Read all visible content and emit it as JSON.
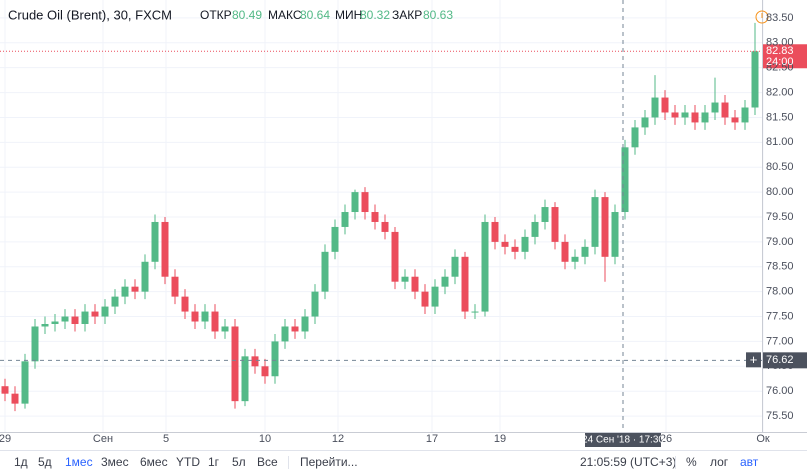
{
  "header": {
    "symbol": "Crude Oil (Brent), 30, FXCM",
    "ohlc": [
      {
        "label": "ОТКР",
        "value": "80.49"
      },
      {
        "label": "МАКС",
        "value": "80.64"
      },
      {
        "label": "МИН",
        "value": "80.32"
      },
      {
        "label": "ЗАКР",
        "value": "80.63"
      }
    ]
  },
  "chart_data": {
    "type": "candlestick",
    "up_color": "#53b987",
    "down_color": "#eb4d5c",
    "grid": true,
    "open": [
      76.1,
      75.95,
      75.75,
      76.6,
      77.3,
      77.35,
      77.4,
      77.5,
      77.35,
      77.6,
      77.5,
      77.7,
      77.9,
      78.1,
      78.0,
      78.6,
      79.4,
      78.3,
      77.9,
      77.6,
      77.4,
      77.6,
      77.2,
      77.3,
      75.8,
      76.7,
      76.5,
      76.3,
      77.0,
      77.3,
      77.2,
      77.5,
      78.0,
      78.8,
      79.3,
      79.6,
      80.0,
      79.6,
      79.4,
      79.2,
      78.2,
      78.3,
      78.0,
      77.7,
      78.1,
      78.3,
      78.7,
      77.6,
      77.6,
      79.4,
      79.0,
      78.9,
      78.8,
      79.1,
      79.4,
      79.7,
      79.0,
      78.6,
      78.7,
      78.9,
      79.9,
      78.7,
      79.6,
      80.9,
      81.3,
      81.5,
      81.9,
      81.6,
      81.5,
      81.6,
      81.4,
      81.6,
      81.8,
      81.5,
      81.4,
      81.7
    ],
    "high": [
      76.25,
      76.1,
      76.75,
      77.45,
      77.5,
      77.55,
      77.65,
      77.65,
      77.75,
      77.75,
      77.85,
      78.05,
      78.25,
      78.25,
      78.75,
      79.55,
      79.5,
      78.45,
      78.05,
      77.75,
      77.75,
      77.75,
      77.45,
      77.45,
      76.85,
      76.85,
      76.65,
      77.15,
      77.45,
      77.45,
      77.65,
      78.15,
      78.95,
      79.45,
      79.75,
      80.05,
      80.1,
      79.75,
      79.55,
      79.3,
      78.45,
      78.45,
      78.15,
      78.25,
      78.45,
      78.85,
      78.8,
      77.75,
      79.55,
      79.5,
      79.15,
      79.05,
      79.25,
      79.55,
      79.85,
      79.8,
      79.15,
      78.85,
      79.05,
      80.05,
      80.0,
      79.75,
      81.05,
      81.45,
      81.65,
      82.35,
      82.05,
      81.75,
      81.75,
      81.75,
      81.75,
      82.3,
      81.95,
      81.65,
      81.85,
      83.4
    ],
    "low": [
      75.8,
      75.6,
      75.65,
      76.45,
      77.15,
      77.2,
      77.25,
      77.2,
      77.2,
      77.35,
      77.35,
      77.55,
      77.75,
      77.85,
      77.85,
      78.45,
      78.15,
      77.75,
      77.45,
      77.25,
      77.25,
      77.05,
      77.05,
      75.65,
      75.7,
      76.35,
      76.15,
      76.15,
      76.85,
      77.05,
      77.05,
      77.35,
      77.85,
      78.65,
      79.15,
      79.45,
      79.45,
      79.25,
      79.05,
      78.05,
      78.05,
      77.85,
      77.55,
      77.55,
      77.95,
      78.15,
      77.45,
      77.45,
      77.5,
      78.85,
      78.75,
      78.65,
      78.65,
      78.95,
      79.25,
      78.85,
      78.45,
      78.45,
      78.55,
      78.75,
      78.2,
      78.55,
      79.45,
      80.75,
      81.15,
      81.35,
      81.45,
      81.35,
      81.35,
      81.25,
      81.25,
      81.45,
      81.35,
      81.25,
      81.25,
      81.55
    ],
    "close": [
      75.95,
      75.75,
      76.6,
      77.3,
      77.35,
      77.4,
      77.5,
      77.35,
      77.6,
      77.5,
      77.7,
      77.9,
      78.1,
      78.0,
      78.6,
      79.4,
      78.3,
      77.9,
      77.6,
      77.4,
      77.6,
      77.2,
      77.3,
      75.8,
      76.7,
      76.5,
      76.3,
      77.0,
      77.3,
      77.2,
      77.5,
      78.0,
      78.8,
      79.3,
      79.6,
      80.0,
      79.6,
      79.4,
      79.2,
      78.2,
      78.3,
      78.0,
      77.7,
      78.1,
      78.3,
      78.7,
      77.6,
      77.6,
      79.4,
      79.0,
      78.9,
      78.8,
      79.1,
      79.4,
      79.7,
      79.0,
      78.6,
      78.7,
      78.9,
      79.9,
      78.7,
      79.6,
      80.9,
      81.3,
      81.5,
      81.9,
      81.6,
      81.5,
      81.6,
      81.4,
      81.6,
      81.8,
      81.5,
      81.4,
      81.7,
      82.83
    ],
    "xlim": [
      -0.5,
      75.7
    ],
    "xticks": [
      {
        "value": 0,
        "label": "29"
      },
      {
        "value": 9.8,
        "label": "Сен"
      },
      {
        "value": 16.1,
        "label": "5"
      },
      {
        "value": 26,
        "label": "10"
      },
      {
        "value": 33.3,
        "label": "12"
      },
      {
        "value": 42.7,
        "label": "17"
      },
      {
        "value": 49.5,
        "label": "19"
      },
      {
        "value": 66.1,
        "label": "26"
      },
      {
        "value": 75.8,
        "label": "Ок"
      }
    ],
    "ylim": [
      75.18,
      83.86
    ],
    "yticks": [
      {
        "value": 75.5,
        "label": "75.50"
      },
      {
        "value": 76,
        "label": "76.00"
      },
      {
        "value": 76.5,
        "label": "76.50"
      },
      {
        "value": 77,
        "label": "77.00"
      },
      {
        "value": 77.5,
        "label": "77.50"
      },
      {
        "value": 78,
        "label": "78.00"
      },
      {
        "value": 78.5,
        "label": "78.50"
      },
      {
        "value": 79,
        "label": "79.00"
      },
      {
        "value": 79.5,
        "label": "79.50"
      },
      {
        "value": 80,
        "label": "80.00"
      },
      {
        "value": 80.5,
        "label": "80.50"
      },
      {
        "value": 81,
        "label": "81.00"
      },
      {
        "value": 81.5,
        "label": "81.50"
      },
      {
        "value": 82,
        "label": "82.00"
      },
      {
        "value": 82.5,
        "label": "82.50"
      },
      {
        "value": 83,
        "label": "83.00"
      },
      {
        "value": 83.5,
        "label": "83.50"
      }
    ],
    "last_price": 82.83,
    "countdown": "24:00",
    "crosshair_price": 76.62,
    "crosshair_time": "24 Сен '18 · 17:30"
  },
  "toolbar": {
    "ranges": [
      "1д",
      "5д",
      "1мес",
      "3мес",
      "6мес",
      "YTD",
      "1г",
      "5л",
      "Все"
    ],
    "goto": "Перейти...",
    "clock": "21:05:59 (UTC+3)",
    "percent": "%",
    "log": "лог",
    "auto": "авт"
  }
}
